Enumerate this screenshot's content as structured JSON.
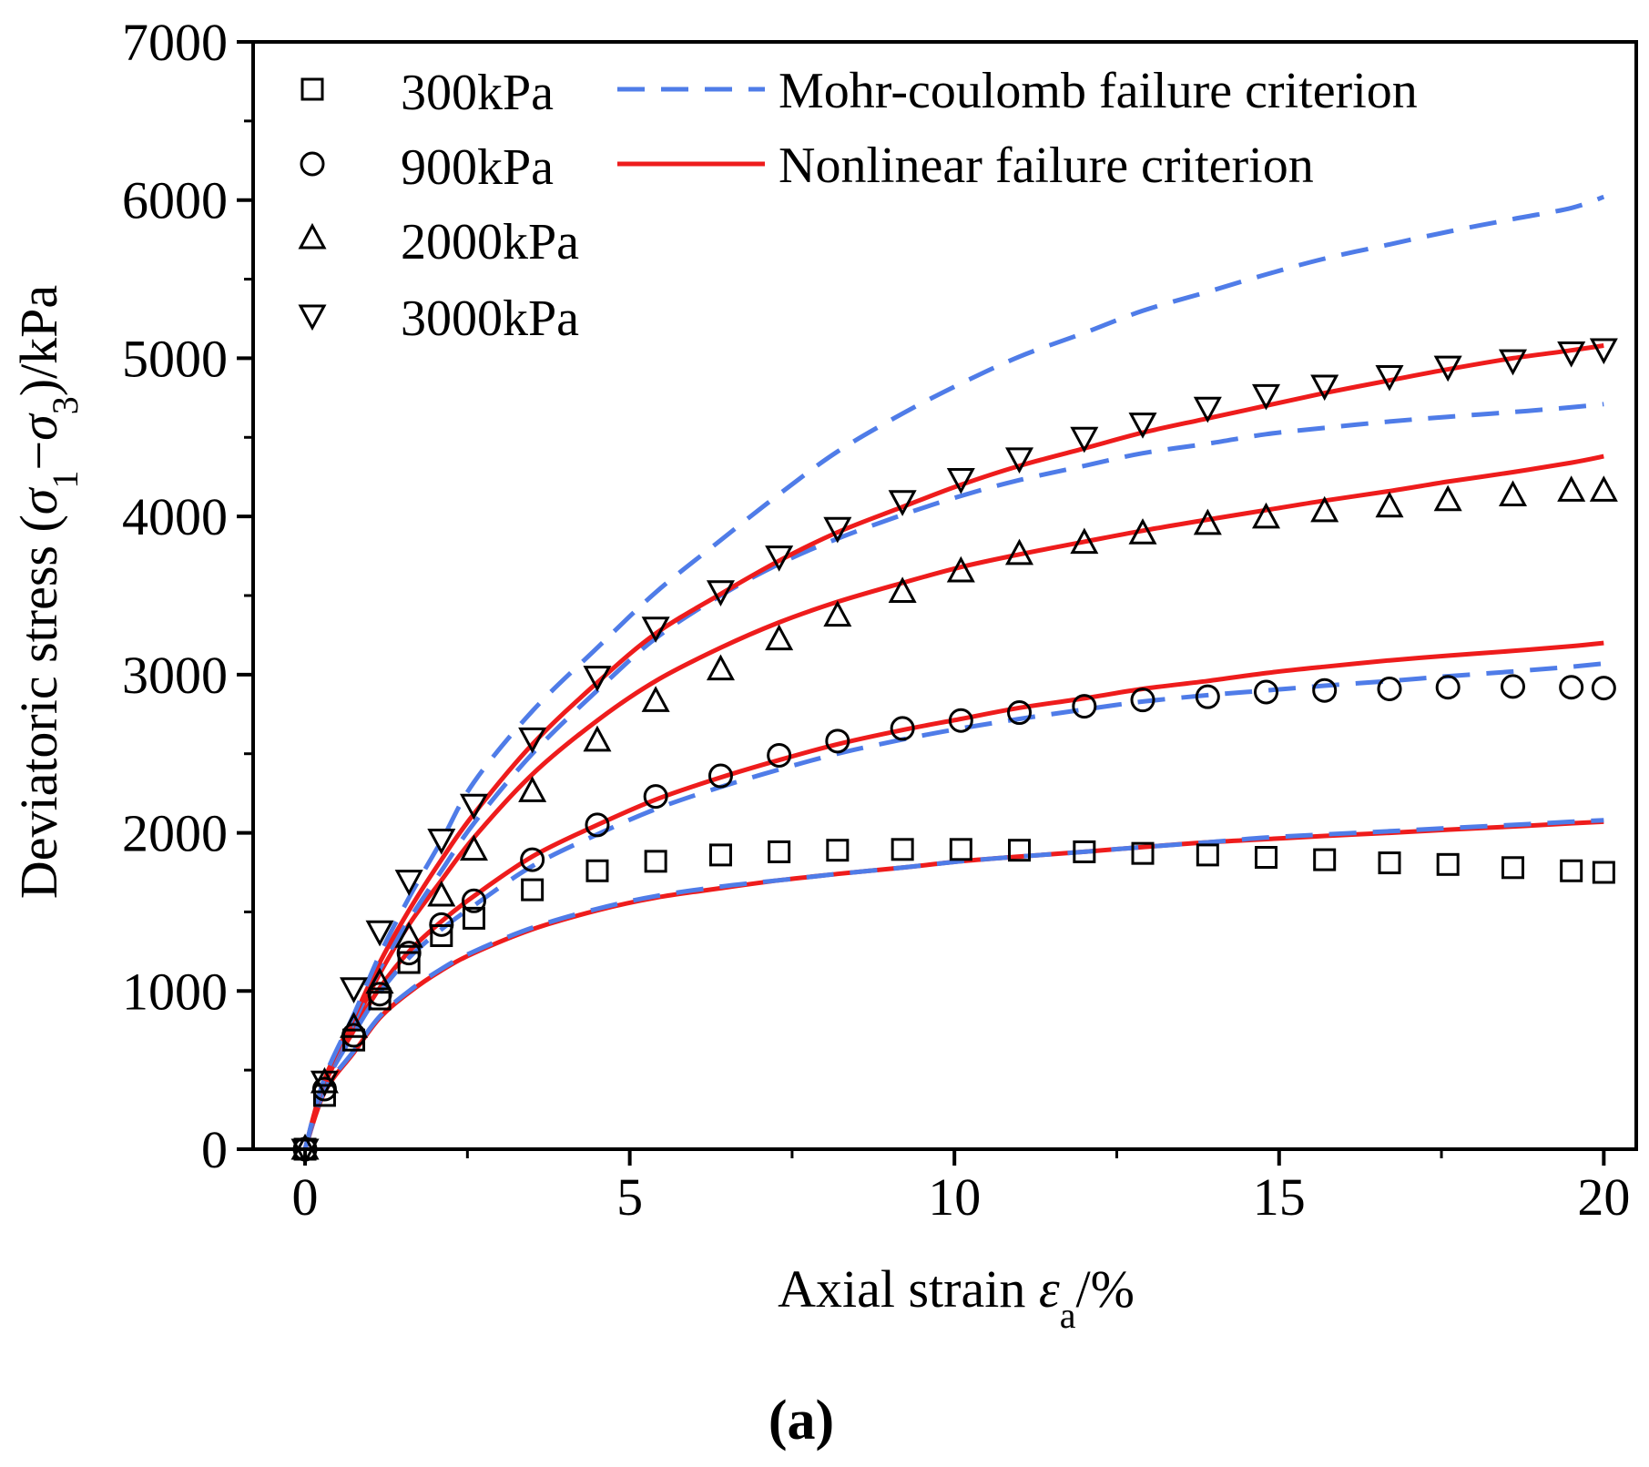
{
  "chart_data": {
    "type": "scatter",
    "panel_label": "(a)",
    "xlabel": {
      "prefix": "Axial strain ",
      "symbol": "ε",
      "subscript": "a",
      "suffix": "/%"
    },
    "ylabel": {
      "prefix": "Deviatoric stress (",
      "s1": "σ",
      "s1_sub": "1",
      "minus": "−",
      "s3": "σ",
      "s3_sub": "3",
      "suffix": ")/kPa"
    },
    "xlim": [
      -0.8,
      20.5
    ],
    "ylim": [
      0,
      7000
    ],
    "xticks": [
      0,
      5,
      10,
      15,
      20
    ],
    "yticks": [
      0,
      1000,
      2000,
      3000,
      4000,
      5000,
      6000,
      7000
    ],
    "legend": [
      {
        "label": "300kPa",
        "marker": "square"
      },
      {
        "label": "900kPa",
        "marker": "circle"
      },
      {
        "label": "2000kPa",
        "marker": "triangle-up"
      },
      {
        "label": "3000kPa",
        "marker": "triangle-down"
      },
      {
        "label": "Mohr-coulomb failure criterion",
        "line": "dashed",
        "color": "#4f7ce8"
      },
      {
        "label": "Nonlinear failure criterion",
        "line": "solid",
        "color": "#ee1c1c"
      }
    ],
    "colors": {
      "mc": "#4f7ce8",
      "nl": "#ee1c1c",
      "marker": "#000000"
    },
    "series": [
      {
        "name": "300kPa",
        "marker": "square",
        "x": [
          0,
          0.3,
          0.75,
          1.15,
          1.6,
          2.1,
          2.6,
          3.5,
          4.5,
          5.4,
          6.4,
          7.3,
          8.2,
          9.2,
          10.1,
          11.0,
          12.0,
          12.9,
          13.9,
          14.8,
          15.7,
          16.7,
          17.6,
          18.6,
          19.5,
          20.0
        ],
        "y": [
          0,
          340,
          690,
          950,
          1180,
          1350,
          1460,
          1640,
          1760,
          1820,
          1860,
          1880,
          1890,
          1895,
          1895,
          1890,
          1880,
          1870,
          1860,
          1845,
          1830,
          1810,
          1800,
          1780,
          1760,
          1750
        ],
        "mc_fit": [
          0,
          370,
          620,
          840,
          1000,
          1140,
          1250,
          1400,
          1520,
          1600,
          1660,
          1700,
          1740,
          1780,
          1820,
          1850,
          1880,
          1910,
          1940,
          1970,
          1990,
          2010,
          2030,
          2050,
          2070,
          2080
        ],
        "nl_fit": [
          0,
          360,
          610,
          830,
          990,
          1130,
          1240,
          1390,
          1510,
          1590,
          1650,
          1700,
          1740,
          1780,
          1820,
          1850,
          1880,
          1910,
          1940,
          1960,
          1980,
          2000,
          2020,
          2040,
          2060,
          2070
        ]
      },
      {
        "name": "900kPa",
        "marker": "circle",
        "x": [
          0,
          0.3,
          0.75,
          1.15,
          1.6,
          2.1,
          2.6,
          3.5,
          4.5,
          5.4,
          6.4,
          7.3,
          8.2,
          9.2,
          10.1,
          11.0,
          12.0,
          12.9,
          13.9,
          14.8,
          15.7,
          16.7,
          17.6,
          18.6,
          19.5,
          20.0
        ],
        "y": [
          0,
          380,
          720,
          980,
          1240,
          1420,
          1570,
          1830,
          2050,
          2230,
          2360,
          2490,
          2580,
          2660,
          2710,
          2760,
          2800,
          2840,
          2860,
          2890,
          2900,
          2910,
          2920,
          2925,
          2920,
          2915
        ],
        "mc_fit": [
          0,
          400,
          730,
          990,
          1210,
          1390,
          1540,
          1790,
          1990,
          2150,
          2290,
          2400,
          2500,
          2590,
          2660,
          2720,
          2780,
          2830,
          2870,
          2900,
          2930,
          2960,
          2990,
          3020,
          3050,
          3070
        ],
        "nl_fit": [
          0,
          410,
          750,
          1020,
          1250,
          1440,
          1600,
          1850,
          2050,
          2210,
          2350,
          2460,
          2560,
          2650,
          2720,
          2790,
          2850,
          2910,
          2960,
          3010,
          3050,
          3090,
          3120,
          3150,
          3180,
          3200
        ]
      },
      {
        "name": "2000kPa",
        "marker": "triangle-up",
        "x": [
          0,
          0.3,
          0.75,
          1.15,
          1.6,
          2.1,
          2.6,
          3.5,
          4.5,
          5.4,
          6.4,
          7.3,
          8.2,
          9.2,
          10.1,
          11.0,
          12.0,
          12.9,
          13.9,
          14.8,
          15.7,
          16.7,
          17.6,
          18.6,
          19.5,
          20.0
        ],
        "y": [
          0,
          420,
          770,
          1050,
          1340,
          1600,
          1890,
          2260,
          2580,
          2830,
          3030,
          3220,
          3370,
          3520,
          3650,
          3760,
          3830,
          3890,
          3950,
          3990,
          4030,
          4060,
          4100,
          4130,
          4160,
          4160
        ],
        "mc_fit": [
          0,
          430,
          800,
          1140,
          1450,
          1760,
          2060,
          2500,
          2900,
          3230,
          3500,
          3700,
          3860,
          4010,
          4130,
          4230,
          4320,
          4400,
          4460,
          4520,
          4560,
          4600,
          4630,
          4660,
          4690,
          4710
        ],
        "nl_fit": [
          0,
          430,
          790,
          1110,
          1420,
          1700,
          1970,
          2370,
          2710,
          2960,
          3170,
          3330,
          3460,
          3580,
          3680,
          3760,
          3840,
          3910,
          3980,
          4040,
          4100,
          4160,
          4220,
          4280,
          4340,
          4380
        ]
      },
      {
        "name": "3000kPa",
        "marker": "triangle-down",
        "x": [
          0,
          0.3,
          0.75,
          1.15,
          1.6,
          2.1,
          2.6,
          3.5,
          4.5,
          5.4,
          6.4,
          7.3,
          8.2,
          9.2,
          10.1,
          11.0,
          12.0,
          12.9,
          13.9,
          14.8,
          15.7,
          16.7,
          17.6,
          18.6,
          19.5,
          20.0
        ],
        "y": [
          0,
          430,
          1020,
          1380,
          1700,
          1960,
          2180,
          2600,
          2990,
          3300,
          3530,
          3750,
          3930,
          4100,
          4240,
          4370,
          4500,
          4590,
          4690,
          4770,
          4830,
          4890,
          4950,
          4990,
          5040,
          5060
        ],
        "mc_fit": [
          0,
          450,
          850,
          1230,
          1590,
          1950,
          2320,
          2770,
          3170,
          3520,
          3850,
          4140,
          4410,
          4650,
          4840,
          5010,
          5160,
          5300,
          5420,
          5530,
          5630,
          5720,
          5800,
          5880,
          5950,
          6020
        ],
        "nl_fit": [
          0,
          440,
          830,
          1180,
          1510,
          1830,
          2120,
          2560,
          2950,
          3260,
          3510,
          3720,
          3900,
          4060,
          4200,
          4320,
          4430,
          4530,
          4620,
          4700,
          4780,
          4860,
          4930,
          5000,
          5050,
          5080
        ]
      }
    ]
  }
}
